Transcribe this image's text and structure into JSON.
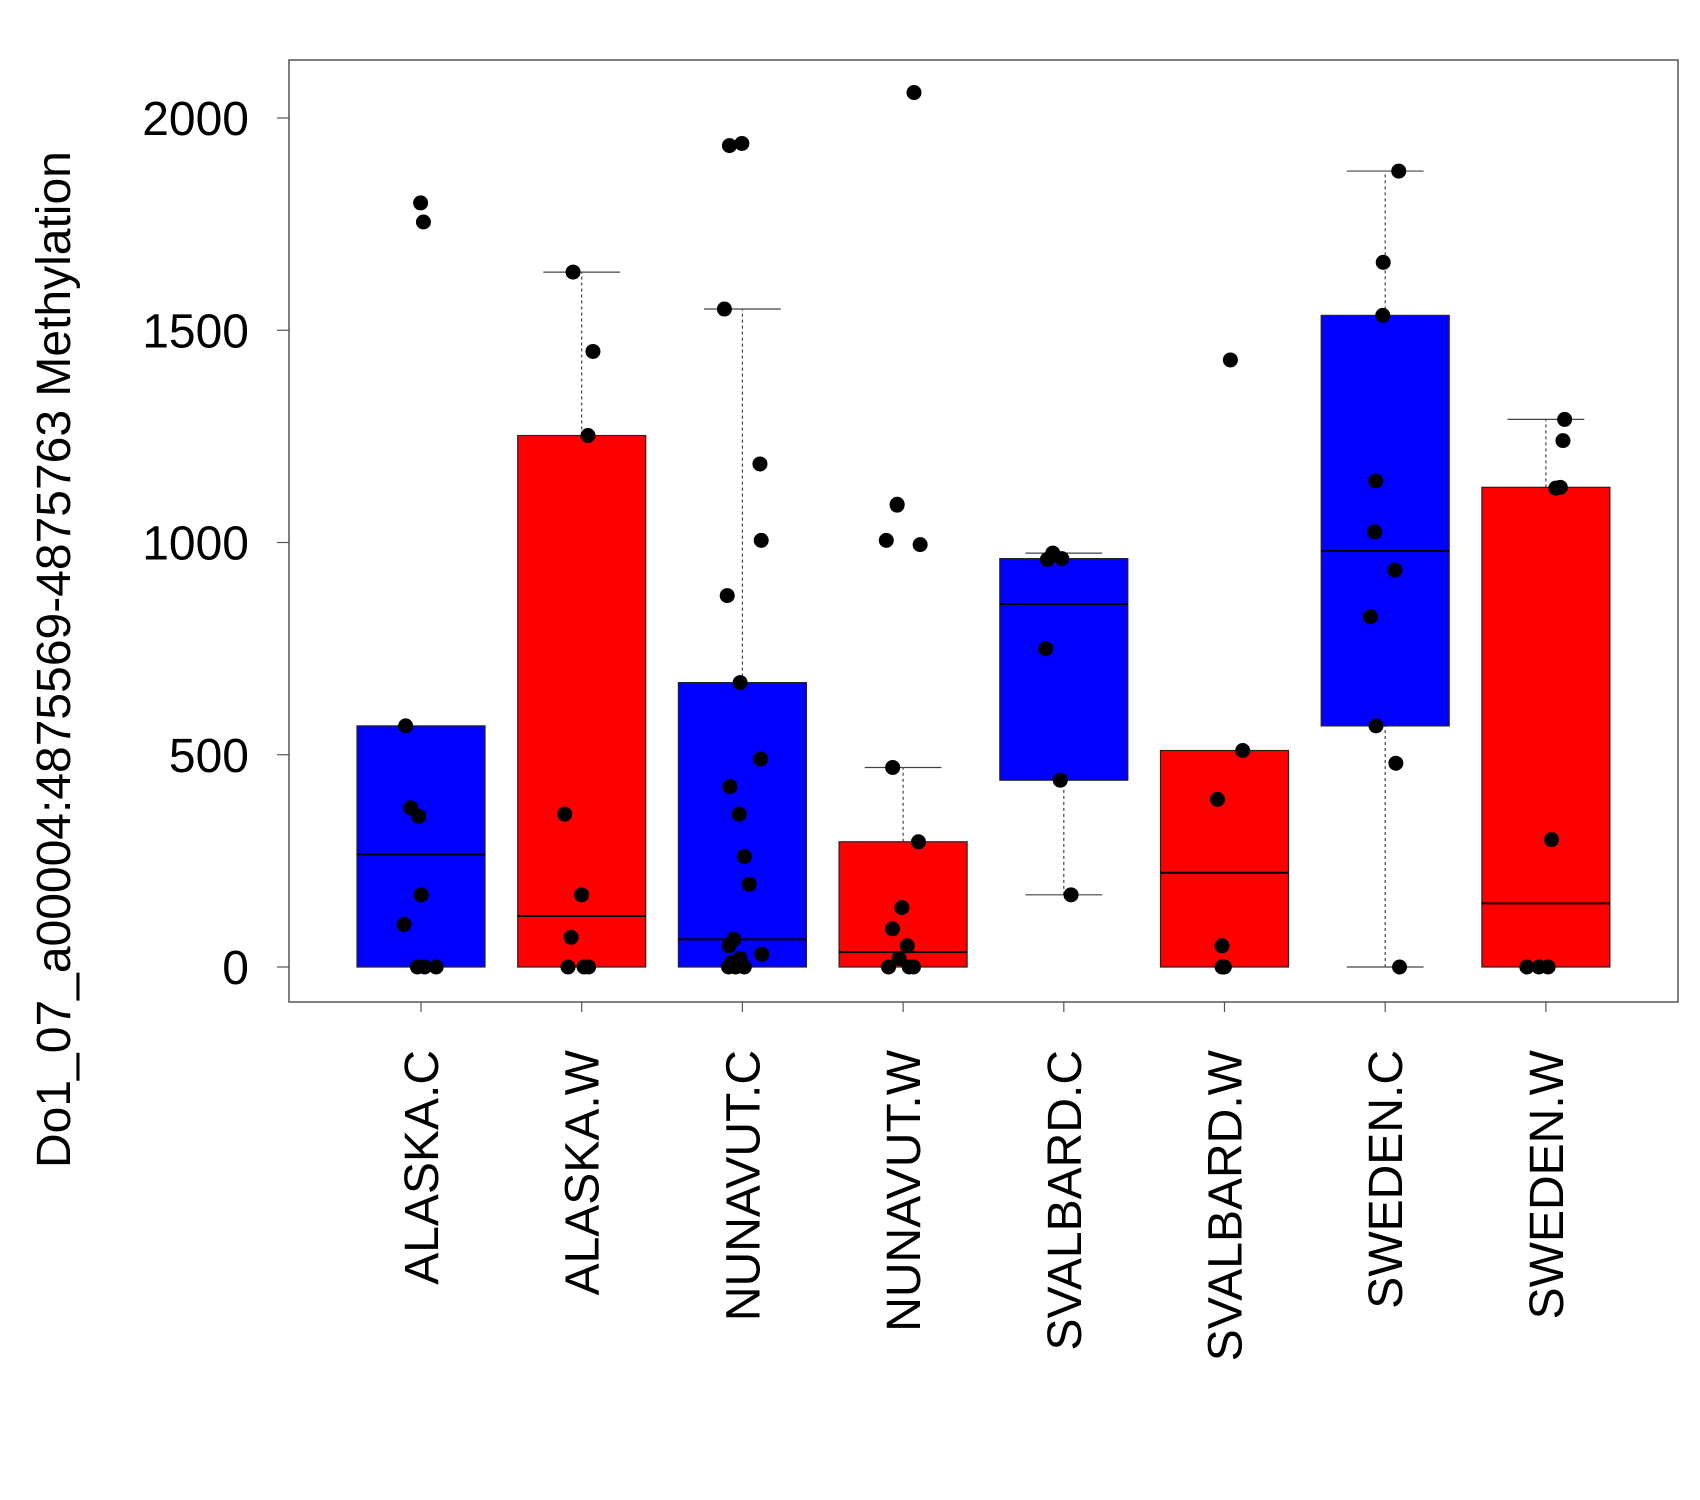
{
  "chart_data": {
    "type": "boxplot",
    "title": "",
    "xlabel": "",
    "ylabel": "Do1_07_a00004:4875569-4875763 Methylation",
    "ylim": [
      -80,
      2140
    ],
    "yticks": [
      0,
      500,
      1000,
      1500,
      2000
    ],
    "colors": {
      "C": "#0000ff",
      "W": "#ff0000"
    },
    "groups": [
      {
        "name": "ALASKA.C",
        "color": "#0000ff",
        "box": {
          "whisker_low": 0,
          "q1": 0,
          "median": 265,
          "q3": 568,
          "whisker_high": 568
        },
        "points": [
          1800,
          1755,
          568,
          375,
          355,
          170,
          100,
          0,
          0,
          0
        ]
      },
      {
        "name": "ALASKA.W",
        "color": "#ff0000",
        "box": {
          "whisker_low": 0,
          "q1": 0,
          "median": 120,
          "q3": 1252,
          "whisker_high": 1637
        },
        "points": [
          1637,
          1450,
          1252,
          360,
          170,
          70,
          0,
          0,
          0
        ]
      },
      {
        "name": "NUNAVUT.C",
        "color": "#0000ff",
        "box": {
          "whisker_low": 0,
          "q1": 0,
          "median": 65,
          "q3": 670,
          "whisker_high": 1550
        },
        "points": [
          1940,
          1935,
          1550,
          1185,
          1005,
          875,
          670,
          490,
          425,
          360,
          260,
          195,
          65,
          50,
          30,
          20,
          10,
          0,
          0,
          0
        ]
      },
      {
        "name": "NUNAVUT.W",
        "color": "#ff0000",
        "box": {
          "whisker_low": 0,
          "q1": 0,
          "median": 35,
          "q3": 295,
          "whisker_high": 470
        },
        "points": [
          2060,
          1090,
          1088,
          1005,
          995,
          470,
          295,
          140,
          90,
          50,
          20,
          0,
          0,
          0
        ]
      },
      {
        "name": "SVALBARD.C",
        "color": "#0000ff",
        "box": {
          "whisker_low": 170,
          "q1": 440,
          "median": 855,
          "q3": 962,
          "whisker_high": 975
        },
        "points": [
          975,
          962,
          960,
          750,
          440,
          170
        ]
      },
      {
        "name": "SVALBARD.W",
        "color": "#ff0000",
        "box": {
          "whisker_low": 0,
          "q1": 0,
          "median": 222,
          "q3": 510,
          "whisker_high": 510
        },
        "points": [
          1430,
          510,
          395,
          50,
          0,
          0
        ]
      },
      {
        "name": "SWEDEN.C",
        "color": "#0000ff",
        "box": {
          "whisker_low": 0,
          "q1": 568,
          "median": 980,
          "q3": 1535,
          "whisker_high": 1875
        },
        "points": [
          1875,
          1660,
          1535,
          1145,
          1025,
          935,
          825,
          568,
          480,
          0
        ]
      },
      {
        "name": "SWEDEN.W",
        "color": "#ff0000",
        "box": {
          "whisker_low": 0,
          "q1": 0,
          "median": 150,
          "q3": 1130,
          "whisker_high": 1290
        },
        "points": [
          1290,
          1240,
          1130,
          1128,
          300,
          0,
          0,
          0
        ]
      }
    ]
  }
}
